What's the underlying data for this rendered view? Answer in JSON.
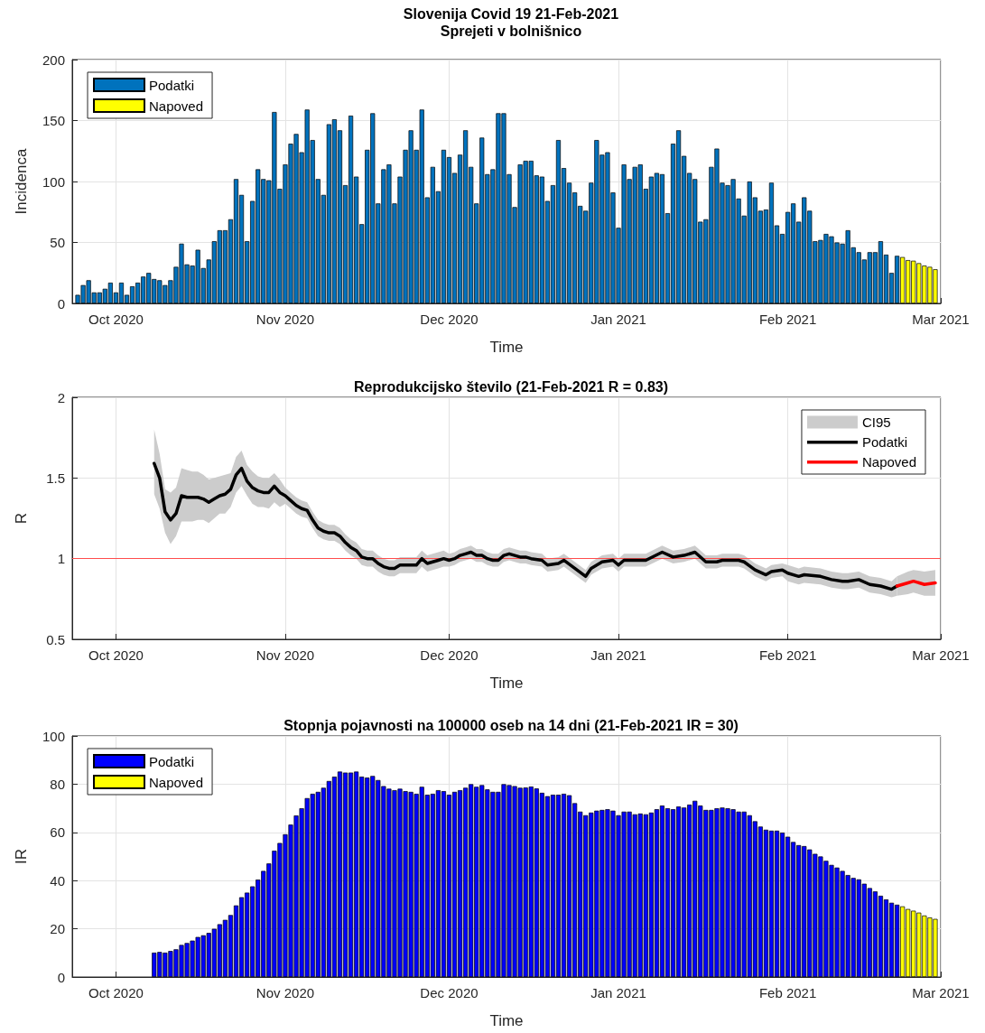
{
  "chart_data": [
    {
      "type": "bar",
      "title": "Slovenija Covid 19 21-Feb-2021",
      "subtitle": "Sprejeti v bolnišnico",
      "xlabel": "Time",
      "ylabel": "Incidenca",
      "xlim": [
        "2020-09-23",
        "2021-03-01"
      ],
      "xticks": [
        {
          "value": "2020-10-01",
          "label": "Oct 2020"
        },
        {
          "value": "2020-11-01",
          "label": "Nov 2020"
        },
        {
          "value": "2020-12-01",
          "label": "Dec 2020"
        },
        {
          "value": "2021-01-01",
          "label": "Jan 2021"
        },
        {
          "value": "2021-02-01",
          "label": "Feb 2021"
        },
        {
          "value": "2021-03-01",
          "label": "Mar 2021"
        }
      ],
      "ylim": [
        0,
        200
      ],
      "yticks": [
        0,
        50,
        100,
        150,
        200
      ],
      "grid": true,
      "legend": "top left",
      "series": [
        {
          "name": "Podatki",
          "color": "#0072bd",
          "x": [
            "2020-09-24",
            "2020-09-25",
            "2020-09-26",
            "2020-09-27",
            "2020-09-28",
            "2020-09-29",
            "2020-09-30",
            "2020-10-01",
            "2020-10-02",
            "2020-10-03",
            "2020-10-04",
            "2020-10-05",
            "2020-10-06",
            "2020-10-07",
            "2020-10-08",
            "2020-10-09",
            "2020-10-10",
            "2020-10-11",
            "2020-10-12",
            "2020-10-13",
            "2020-10-14",
            "2020-10-15",
            "2020-10-16",
            "2020-10-17",
            "2020-10-18",
            "2020-10-19",
            "2020-10-20",
            "2020-10-21",
            "2020-10-22",
            "2020-10-23",
            "2020-10-24",
            "2020-10-25",
            "2020-10-26",
            "2020-10-27",
            "2020-10-28",
            "2020-10-29",
            "2020-10-30",
            "2020-10-31",
            "2020-11-01",
            "2020-11-02",
            "2020-11-03",
            "2020-11-04",
            "2020-11-05",
            "2020-11-06",
            "2020-11-07",
            "2020-11-08",
            "2020-11-09",
            "2020-11-10",
            "2020-11-11",
            "2020-11-12",
            "2020-11-13",
            "2020-11-14",
            "2020-11-15",
            "2020-11-16",
            "2020-11-17",
            "2020-11-18",
            "2020-11-19",
            "2020-11-20",
            "2020-11-21",
            "2020-11-22",
            "2020-11-23",
            "2020-11-24",
            "2020-11-25",
            "2020-11-26",
            "2020-11-27",
            "2020-11-28",
            "2020-11-29",
            "2020-11-30",
            "2020-12-01",
            "2020-12-02",
            "2020-12-03",
            "2020-12-04",
            "2020-12-05",
            "2020-12-06",
            "2020-12-07",
            "2020-12-08",
            "2020-12-09",
            "2020-12-10",
            "2020-12-11",
            "2020-12-12",
            "2020-12-13",
            "2020-12-14",
            "2020-12-15",
            "2020-12-16",
            "2020-12-17",
            "2020-12-18",
            "2020-12-19",
            "2020-12-20",
            "2020-12-21",
            "2020-12-22",
            "2020-12-23",
            "2020-12-24",
            "2020-12-25",
            "2020-12-26",
            "2020-12-27",
            "2020-12-28",
            "2020-12-29",
            "2020-12-30",
            "2020-12-31",
            "2021-01-01",
            "2021-01-02",
            "2021-01-03",
            "2021-01-04",
            "2021-01-05",
            "2021-01-06",
            "2021-01-07",
            "2021-01-08",
            "2021-01-09",
            "2021-01-10",
            "2021-01-11",
            "2021-01-12",
            "2021-01-13",
            "2021-01-14",
            "2021-01-15",
            "2021-01-16",
            "2021-01-17",
            "2021-01-18",
            "2021-01-19",
            "2021-01-20",
            "2021-01-21",
            "2021-01-22",
            "2021-01-23",
            "2021-01-24",
            "2021-01-25",
            "2021-01-26",
            "2021-01-27",
            "2021-01-28",
            "2021-01-29",
            "2021-01-30",
            "2021-01-31",
            "2021-02-01",
            "2021-02-02",
            "2021-02-03",
            "2021-02-04",
            "2021-02-05",
            "2021-02-06",
            "2021-02-07",
            "2021-02-08",
            "2021-02-09",
            "2021-02-10",
            "2021-02-11",
            "2021-02-12",
            "2021-02-13",
            "2021-02-14",
            "2021-02-15",
            "2021-02-16",
            "2021-02-17",
            "2021-02-18",
            "2021-02-19",
            "2021-02-20",
            "2021-02-21"
          ],
          "values": [
            7,
            15,
            19,
            9,
            9,
            12,
            17,
            9,
            17,
            7,
            14,
            17,
            22,
            25,
            20,
            19,
            15,
            19,
            30,
            49,
            32,
            31,
            44,
            29,
            36,
            51,
            60,
            60,
            69,
            102,
            89,
            51,
            84,
            110,
            102,
            101,
            157,
            94,
            114,
            131,
            139,
            124,
            159,
            134,
            102,
            89,
            147,
            151,
            142,
            97,
            154,
            104,
            65,
            126,
            156,
            82,
            110,
            114,
            82,
            104,
            126,
            142,
            126,
            159,
            87,
            112,
            92,
            126,
            120,
            107,
            122,
            142,
            112,
            82,
            136,
            106,
            110,
            156,
            156,
            106,
            79,
            114,
            117,
            117,
            105,
            104,
            84,
            97,
            134,
            111,
            99,
            91,
            80,
            76,
            99,
            134,
            122,
            124,
            91,
            62,
            114,
            102,
            112,
            114,
            94,
            104,
            107,
            106,
            74,
            131,
            142,
            121,
            107,
            102,
            67,
            69,
            112,
            127,
            99,
            97,
            102,
            86,
            72,
            100,
            87,
            76,
            77,
            99,
            64,
            57,
            75,
            82,
            67,
            87,
            76,
            51,
            52,
            57,
            55,
            50,
            49,
            60,
            46,
            42,
            36,
            42,
            42,
            51,
            40,
            25,
            39
          ]
        },
        {
          "name": "Napoved",
          "color": "#ffff00",
          "x": [
            "2021-02-22",
            "2021-02-23",
            "2021-02-24",
            "2021-02-25",
            "2021-02-26",
            "2021-02-27",
            "2021-02-28"
          ],
          "values": [
            38,
            35.5,
            35,
            33,
            31,
            30,
            28
          ]
        }
      ]
    },
    {
      "type": "line",
      "title": "Reprodukcijsko število (21-Feb-2021 R = 0.83)",
      "xlabel": "Time",
      "ylabel": "R",
      "xlim": [
        "2020-09-23",
        "2021-03-01"
      ],
      "xticks": [
        {
          "value": "2020-10-01",
          "label": "Oct 2020"
        },
        {
          "value": "2020-11-01",
          "label": "Nov 2020"
        },
        {
          "value": "2020-12-01",
          "label": "Dec 2020"
        },
        {
          "value": "2021-01-01",
          "label": "Jan 2021"
        },
        {
          "value": "2021-02-01",
          "label": "Feb 2021"
        },
        {
          "value": "2021-03-01",
          "label": "Mar 2021"
        }
      ],
      "ylim": [
        0.5,
        2
      ],
      "yticks": [
        0.5,
        1,
        1.5,
        2
      ],
      "grid": true,
      "legend": "top right",
      "marker": "none",
      "ref_lines": [
        {
          "axis": "y",
          "value": 1,
          "color": "#ff4c4c"
        }
      ],
      "series": [
        {
          "name": "CI95",
          "type": "area",
          "color": "#cccccc"
        },
        {
          "name": "Podatki",
          "color": "#000000",
          "x": [
            "2020-10-08",
            "2020-10-09",
            "2020-10-10",
            "2020-10-11",
            "2020-10-12",
            "2020-10-13",
            "2020-10-14",
            "2020-10-15",
            "2020-10-16",
            "2020-10-17",
            "2020-10-18",
            "2020-10-19",
            "2020-10-20",
            "2020-10-21",
            "2020-10-22",
            "2020-10-23",
            "2020-10-24",
            "2020-10-25",
            "2020-10-26",
            "2020-10-27",
            "2020-10-28",
            "2020-10-29",
            "2020-10-30",
            "2020-10-31",
            "2020-11-01",
            "2020-11-02",
            "2020-11-03",
            "2020-11-04",
            "2020-11-05",
            "2020-11-06",
            "2020-11-07",
            "2020-11-08",
            "2020-11-09",
            "2020-11-10",
            "2020-11-11",
            "2020-11-12",
            "2020-11-13",
            "2020-11-14",
            "2020-11-15",
            "2020-11-16",
            "2020-11-17",
            "2020-11-18",
            "2020-11-19",
            "2020-11-20",
            "2020-11-21",
            "2020-11-22",
            "2020-11-23",
            "2020-11-24",
            "2020-11-25",
            "2020-11-26",
            "2020-11-27",
            "2020-11-28",
            "2020-11-29",
            "2020-11-30",
            "2020-12-01",
            "2020-12-02",
            "2020-12-03",
            "2020-12-04",
            "2020-12-05",
            "2020-12-06",
            "2020-12-07",
            "2020-12-08",
            "2020-12-09",
            "2020-12-10",
            "2020-12-11",
            "2020-12-12",
            "2020-12-13",
            "2020-12-14",
            "2020-12-15",
            "2020-12-16",
            "2020-12-18",
            "2020-12-19",
            "2020-12-21",
            "2020-12-22",
            "2020-12-24",
            "2020-12-26",
            "2020-12-27",
            "2020-12-29",
            "2020-12-31",
            "2021-01-01",
            "2021-01-02",
            "2021-01-04",
            "2021-01-06",
            "2021-01-09",
            "2021-01-11",
            "2021-01-13",
            "2021-01-15",
            "2021-01-17",
            "2021-01-19",
            "2021-01-20",
            "2021-01-23",
            "2021-01-24",
            "2021-01-26",
            "2021-01-28",
            "2021-01-29",
            "2021-01-31",
            "2021-02-01",
            "2021-02-03",
            "2021-02-04",
            "2021-02-07",
            "2021-02-09",
            "2021-02-11",
            "2021-02-12",
            "2021-02-14",
            "2021-02-16",
            "2021-02-18",
            "2021-02-20",
            "2021-02-21"
          ],
          "values": [
            1.59,
            1.5,
            1.29,
            1.24,
            1.28,
            1.39,
            1.38,
            1.38,
            1.38,
            1.37,
            1.35,
            1.37,
            1.39,
            1.4,
            1.43,
            1.52,
            1.56,
            1.48,
            1.44,
            1.42,
            1.41,
            1.41,
            1.45,
            1.41,
            1.39,
            1.36,
            1.33,
            1.31,
            1.3,
            1.24,
            1.19,
            1.17,
            1.16,
            1.16,
            1.14,
            1.1,
            1.07,
            1.05,
            1.01,
            1.0,
            1.0,
            0.97,
            0.95,
            0.94,
            0.94,
            0.96,
            0.96,
            0.96,
            0.96,
            1.0,
            0.97,
            0.98,
            0.99,
            1.0,
            0.99,
            1.0,
            1.02,
            1.03,
            1.04,
            1.02,
            1.02,
            1.0,
            0.99,
            0.99,
            1.02,
            1.03,
            1.02,
            1.01,
            1.01,
            1.0,
            0.99,
            0.96,
            0.97,
            0.99,
            0.94,
            0.89,
            0.94,
            0.98,
            0.99,
            0.96,
            0.99,
            0.99,
            0.99,
            1.04,
            1.01,
            1.02,
            1.04,
            0.98,
            0.98,
            0.99,
            0.99,
            0.98,
            0.93,
            0.9,
            0.92,
            0.93,
            0.91,
            0.89,
            0.9,
            0.89,
            0.87,
            0.86,
            0.86,
            0.87,
            0.84,
            0.83,
            0.81,
            0.83
          ],
          "lower": [
            1.4,
            1.31,
            1.16,
            1.09,
            1.14,
            1.23,
            1.23,
            1.23,
            1.24,
            1.24,
            1.22,
            1.25,
            1.28,
            1.28,
            1.32,
            1.41,
            1.45,
            1.39,
            1.34,
            1.32,
            1.32,
            1.31,
            1.35,
            1.32,
            1.34,
            1.31,
            1.28,
            1.26,
            1.25,
            1.19,
            1.14,
            1.12,
            1.11,
            1.11,
            1.09,
            1.05,
            1.02,
            1.0,
            0.96,
            0.95,
            0.95,
            0.92,
            0.9,
            0.89,
            0.89,
            0.91,
            0.91,
            0.91,
            0.91,
            0.95,
            0.92,
            0.93,
            0.94,
            0.95,
            0.95,
            0.96,
            0.98,
            0.99,
            1.0,
            0.98,
            0.98,
            0.96,
            0.95,
            0.95,
            0.98,
            0.99,
            0.98,
            0.97,
            0.97,
            0.96,
            0.95,
            0.92,
            0.93,
            0.95,
            0.9,
            0.85,
            0.9,
            0.94,
            0.95,
            0.92,
            0.95,
            0.95,
            0.95,
            1.0,
            0.97,
            0.98,
            1.0,
            0.94,
            0.94,
            0.95,
            0.95,
            0.94,
            0.89,
            0.86,
            0.88,
            0.89,
            0.86,
            0.84,
            0.85,
            0.84,
            0.82,
            0.81,
            0.81,
            0.82,
            0.79,
            0.78,
            0.76,
            0.77
          ],
          "upper": [
            1.8,
            1.65,
            1.43,
            1.41,
            1.44,
            1.56,
            1.55,
            1.54,
            1.54,
            1.52,
            1.49,
            1.5,
            1.51,
            1.52,
            1.53,
            1.63,
            1.67,
            1.58,
            1.54,
            1.51,
            1.5,
            1.5,
            1.53,
            1.49,
            1.44,
            1.41,
            1.38,
            1.36,
            1.35,
            1.29,
            1.24,
            1.22,
            1.21,
            1.21,
            1.19,
            1.15,
            1.12,
            1.1,
            1.06,
            1.05,
            1.05,
            1.02,
            1.0,
            0.99,
            0.99,
            1.01,
            1.01,
            1.01,
            1.01,
            1.05,
            1.02,
            1.03,
            1.04,
            1.05,
            1.03,
            1.04,
            1.06,
            1.07,
            1.08,
            1.06,
            1.06,
            1.04,
            1.03,
            1.03,
            1.06,
            1.07,
            1.06,
            1.05,
            1.05,
            1.04,
            1.03,
            1.0,
            1.01,
            1.03,
            0.98,
            0.93,
            0.98,
            1.02,
            1.03,
            1.0,
            1.03,
            1.03,
            1.03,
            1.08,
            1.05,
            1.06,
            1.08,
            1.02,
            1.02,
            1.03,
            1.03,
            1.02,
            0.97,
            0.94,
            0.96,
            0.97,
            0.96,
            0.94,
            0.95,
            0.94,
            0.92,
            0.91,
            0.91,
            0.92,
            0.89,
            0.88,
            0.86,
            0.89
          ]
        },
        {
          "name": "Napoved",
          "color": "#ff0000",
          "x": [
            "2021-02-21",
            "2021-02-23",
            "2021-02-24",
            "2021-02-26",
            "2021-02-28"
          ],
          "values": [
            0.83,
            0.85,
            0.86,
            0.84,
            0.85
          ],
          "lower": [
            0.77,
            0.78,
            0.79,
            0.77,
            0.77
          ],
          "upper": [
            0.89,
            0.92,
            0.93,
            0.92,
            0.93
          ]
        }
      ]
    },
    {
      "type": "bar",
      "title": "Stopnja pojavnosti na 100000 oseb na 14 dni (21-Feb-2021 IR = 30)",
      "xlabel": "Time",
      "ylabel": "IR",
      "xlim": [
        "2020-09-23",
        "2021-03-01"
      ],
      "xticks": [
        {
          "value": "2020-10-01",
          "label": "Oct 2020"
        },
        {
          "value": "2020-11-01",
          "label": "Nov 2020"
        },
        {
          "value": "2020-12-01",
          "label": "Dec 2020"
        },
        {
          "value": "2021-01-01",
          "label": "Jan 2021"
        },
        {
          "value": "2021-02-01",
          "label": "Feb 2021"
        },
        {
          "value": "2021-03-01",
          "label": "Mar 2021"
        }
      ],
      "ylim": [
        0,
        100
      ],
      "yticks": [
        0,
        20,
        40,
        60,
        80,
        100
      ],
      "grid": true,
      "legend": "top left",
      "series": [
        {
          "name": "Podatki",
          "color": "#0000ff",
          "x": [
            "2020-10-08",
            "2020-10-09",
            "2020-10-10",
            "2020-10-11",
            "2020-10-12",
            "2020-10-13",
            "2020-10-14",
            "2020-10-15",
            "2020-10-16",
            "2020-10-17",
            "2020-10-18",
            "2020-10-19",
            "2020-10-20",
            "2020-10-21",
            "2020-10-22",
            "2020-10-23",
            "2020-10-24",
            "2020-10-25",
            "2020-10-26",
            "2020-10-27",
            "2020-10-28",
            "2020-10-29",
            "2020-10-30",
            "2020-10-31",
            "2020-11-01",
            "2020-11-02",
            "2020-11-03",
            "2020-11-04",
            "2020-11-05",
            "2020-11-06",
            "2020-11-07",
            "2020-11-08",
            "2020-11-09",
            "2020-11-10",
            "2020-11-11",
            "2020-11-12",
            "2020-11-13",
            "2020-11-14",
            "2020-11-15",
            "2020-11-16",
            "2020-11-17",
            "2020-11-18",
            "2020-11-19",
            "2020-11-20",
            "2020-11-21",
            "2020-11-22",
            "2020-11-23",
            "2020-11-24",
            "2020-11-25",
            "2020-11-26",
            "2020-11-27",
            "2020-11-28",
            "2020-11-29",
            "2020-11-30",
            "2020-12-01",
            "2020-12-02",
            "2020-12-03",
            "2020-12-04",
            "2020-12-05",
            "2020-12-06",
            "2020-12-07",
            "2020-12-08",
            "2020-12-09",
            "2020-12-10",
            "2020-12-11",
            "2020-12-12",
            "2020-12-13",
            "2020-12-14",
            "2020-12-15",
            "2020-12-16",
            "2020-12-17",
            "2020-12-18",
            "2020-12-19",
            "2020-12-20",
            "2020-12-21",
            "2020-12-22",
            "2020-12-23",
            "2020-12-24",
            "2020-12-25",
            "2020-12-26",
            "2020-12-27",
            "2020-12-28",
            "2020-12-29",
            "2020-12-30",
            "2020-12-31",
            "2021-01-01",
            "2021-01-02",
            "2021-01-03",
            "2021-01-04",
            "2021-01-05",
            "2021-01-06",
            "2021-01-07",
            "2021-01-08",
            "2021-01-09",
            "2021-01-10",
            "2021-01-11",
            "2021-01-12",
            "2021-01-13",
            "2021-01-14",
            "2021-01-15",
            "2021-01-16",
            "2021-01-17",
            "2021-01-18",
            "2021-01-19",
            "2021-01-20",
            "2021-01-21",
            "2021-01-22",
            "2021-01-23",
            "2021-01-24",
            "2021-01-25",
            "2021-01-26",
            "2021-01-27",
            "2021-01-28",
            "2021-01-29",
            "2021-01-30",
            "2021-01-31",
            "2021-02-01",
            "2021-02-02",
            "2021-02-03",
            "2021-02-04",
            "2021-02-05",
            "2021-02-06",
            "2021-02-07",
            "2021-02-08",
            "2021-02-09",
            "2021-02-10",
            "2021-02-11",
            "2021-02-12",
            "2021-02-13",
            "2021-02-14",
            "2021-02-15",
            "2021-02-16",
            "2021-02-17",
            "2021-02-18",
            "2021-02-19",
            "2021-02-20",
            "2021-02-21"
          ],
          "values": [
            10.1,
            10.4,
            10.1,
            10.8,
            11.5,
            13.3,
            14.1,
            15.1,
            16.6,
            17.3,
            18.3,
            20,
            21.9,
            23.7,
            25.7,
            29.7,
            33.1,
            35,
            37.6,
            40.4,
            44,
            47.1,
            52.4,
            55.6,
            59.2,
            63.2,
            67,
            70,
            74.2,
            76,
            76.8,
            78.5,
            81.3,
            83.1,
            85.2,
            84.8,
            84.8,
            85.2,
            83.1,
            82.7,
            83.4,
            81.7,
            79.2,
            78.1,
            77.5,
            78.1,
            77.1,
            76.8,
            76,
            78.9,
            75.6,
            76,
            77.5,
            77.1,
            75.6,
            76.8,
            77.5,
            78.5,
            80,
            78.9,
            79.6,
            77.8,
            76.8,
            76.8,
            80,
            79.6,
            79.2,
            78.5,
            78.6,
            79,
            78.2,
            76.4,
            75,
            75.6,
            75.6,
            76,
            75.4,
            72.1,
            68.6,
            67.1,
            68.2,
            69,
            69.3,
            69.6,
            69,
            67.1,
            68.6,
            68.6,
            67.5,
            67.8,
            67.5,
            68.2,
            69.6,
            71.1,
            70,
            69.6,
            70.7,
            70.3,
            71.5,
            73.1,
            71.1,
            69.3,
            69.3,
            70,
            70.3,
            70,
            69.6,
            68.6,
            68.6,
            67.1,
            64.6,
            62.4,
            61.1,
            60.7,
            60.7,
            59.9,
            58.2,
            56,
            54.7,
            54.3,
            52.9,
            51.1,
            50,
            48.2,
            46.5,
            45.4,
            44,
            42.3,
            41.1,
            40.5,
            38.7,
            36.9,
            35.5,
            33.7,
            32.2,
            30.8,
            30
          ]
        },
        {
          "name": "Napoved",
          "color": "#ffff00",
          "x": [
            "2021-02-22",
            "2021-02-23",
            "2021-02-24",
            "2021-02-25",
            "2021-02-26",
            "2021-02-27",
            "2021-02-28"
          ],
          "values": [
            29.3,
            28.2,
            27.5,
            26.7,
            25.5,
            24.7,
            24.1
          ]
        }
      ]
    }
  ]
}
